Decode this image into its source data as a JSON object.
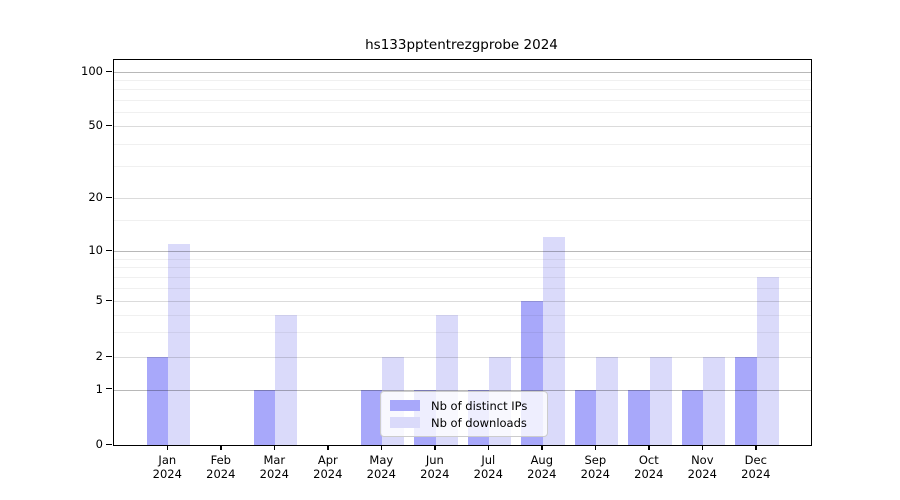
{
  "title": "hs133pptentrezgprobe 2024",
  "legend": {
    "items": [
      {
        "label": "Nb of distinct IPs",
        "color": "#a8a8fa"
      },
      {
        "label": "Nb of downloads",
        "color": "#dadafa"
      }
    ]
  },
  "colors": {
    "distinct_ips": "#a8a8fa",
    "downloads": "#dadafa",
    "spine": "#000000"
  },
  "y_axis": {
    "tick_labels": [
      "100",
      "50",
      "20",
      "10",
      "5",
      "2",
      "1",
      "0"
    ]
  },
  "x_axis": {
    "months": [
      "Jan",
      "Feb",
      "Mar",
      "Apr",
      "May",
      "Jun",
      "Jul",
      "Aug",
      "Sep",
      "Oct",
      "Nov",
      "Dec"
    ],
    "year": "2024"
  },
  "chart_data": {
    "type": "bar",
    "title": "hs133pptentrezgprobe 2024",
    "categories": [
      "Jan 2024",
      "Feb 2024",
      "Mar 2024",
      "Apr 2024",
      "May 2024",
      "Jun 2024",
      "Jul 2024",
      "Aug 2024",
      "Sep 2024",
      "Oct 2024",
      "Nov 2024",
      "Dec 2024"
    ],
    "series": [
      {
        "name": "Nb of distinct IPs",
        "color": "#a8a8fa",
        "values": [
          2,
          0,
          1,
          0,
          1,
          1,
          1,
          5,
          1,
          1,
          1,
          2
        ]
      },
      {
        "name": "Nb of downloads",
        "color": "#dadafa",
        "values": [
          11,
          0,
          4,
          0,
          2,
          4,
          2,
          12,
          2,
          2,
          2,
          7
        ]
      }
    ],
    "yscale": "log-like",
    "yticks": [
      0,
      1,
      2,
      5,
      10,
      20,
      50,
      100
    ],
    "minor_yticks": [
      3,
      4,
      6,
      7,
      8,
      9,
      15,
      30,
      40,
      60,
      70,
      80,
      90
    ],
    "ylim": [
      0,
      118
    ],
    "grid": true,
    "legend_position": "inside lower-center"
  }
}
